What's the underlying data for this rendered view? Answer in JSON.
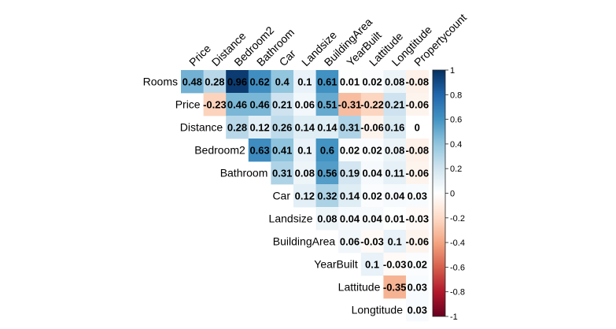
{
  "chart_data": {
    "type": "heatmap",
    "variables": [
      "Rooms",
      "Price",
      "Distance",
      "Bedroom2",
      "Bathroom",
      "Car",
      "Landsize",
      "BuildingArea",
      "YearBuilt",
      "Lattitude",
      "Longtitude",
      "Propertycount"
    ],
    "row_labels": [
      "Rooms",
      "Price",
      "Distance",
      "Bedroom2",
      "Bathroom",
      "Car",
      "Landsize",
      "BuildingArea",
      "YearBuilt",
      "Lattitude",
      "Longtitude"
    ],
    "col_labels": [
      "Price",
      "Distance",
      "Bedroom2",
      "Bathroom",
      "Car",
      "Landsize",
      "BuildingArea",
      "YearBuilt",
      "Lattitude",
      "Longtitude",
      "Propertycount"
    ],
    "matrix": [
      [
        0.48,
        0.28,
        0.96,
        0.62,
        0.4,
        0.1,
        0.61,
        0.01,
        0.02,
        0.08,
        -0.08
      ],
      [
        -0.23,
        0.46,
        0.46,
        0.21,
        0.06,
        0.51,
        -0.31,
        -0.22,
        0.21,
        -0.06
      ],
      [
        0.28,
        0.12,
        0.26,
        0.14,
        0.14,
        0.31,
        -0.06,
        0.16,
        0
      ],
      [
        0.63,
        0.41,
        0.1,
        0.6,
        0.02,
        0.02,
        0.08,
        -0.08
      ],
      [
        0.31,
        0.08,
        0.56,
        0.19,
        0.04,
        0.11,
        -0.06
      ],
      [
        0.12,
        0.32,
        0.14,
        0.02,
        0.04,
        0.03
      ],
      [
        0.08,
        0.04,
        0.04,
        0.01,
        -0.03
      ],
      [
        0.06,
        -0.03,
        0.1,
        -0.06
      ],
      [
        0.1,
        -0.03,
        0.02
      ],
      [
        -0.35,
        0.03
      ],
      [
        0.03
      ]
    ],
    "cell_labels": [
      [
        "0.48",
        "0.28",
        "0.96",
        "0.62",
        "0.4",
        "0.1",
        "0.61",
        "0.01",
        "0.02",
        "0.08",
        "-0.08"
      ],
      [
        "-0.23",
        "0.46",
        "0.46",
        "0.21",
        "0.06",
        "0.51",
        "-0.31",
        "-0.22",
        "0.21",
        "-0.06"
      ],
      [
        "0.28",
        "0.12",
        "0.26",
        "0.14",
        "0.14",
        "0.31",
        "-0.06",
        "0.16",
        "0"
      ],
      [
        "0.63",
        "0.41",
        "0.1",
        "0.6",
        "0.02",
        "0.02",
        "0.08",
        "-0.08"
      ],
      [
        "0.31",
        "0.08",
        "0.56",
        "0.19",
        "0.04",
        "0.11",
        "-0.06"
      ],
      [
        "0.12",
        "0.32",
        "0.14",
        "0.02",
        "0.04",
        "0.03"
      ],
      [
        "0.08",
        "0.04",
        "0.04",
        "0.01",
        "-0.03"
      ],
      [
        "0.06",
        "-0.03",
        "0.1",
        "-0.06"
      ],
      [
        "0.1",
        "-0.03",
        "0.02"
      ],
      [
        "-0.35",
        "0.03"
      ],
      [
        "0.03"
      ]
    ],
    "layout": "upper-triangle",
    "value_range": [
      -1,
      1
    ],
    "colorbar": {
      "ticks": [
        "1",
        "0.8",
        "0.6",
        "0.4",
        "0.2",
        "0",
        "-0.2",
        "-0.4",
        "-0.6",
        "-0.8",
        "-1"
      ],
      "placement": "right"
    },
    "colormap_hex": [
      "#67001f",
      "#b2182b",
      "#d6604d",
      "#f4a582",
      "#fddbc7",
      "#ffffff",
      "#d1e5f0",
      "#92c5de",
      "#4393c3",
      "#2166ac",
      "#053061"
    ],
    "grid": false,
    "title": "",
    "xlabel": "",
    "ylabel": ""
  }
}
